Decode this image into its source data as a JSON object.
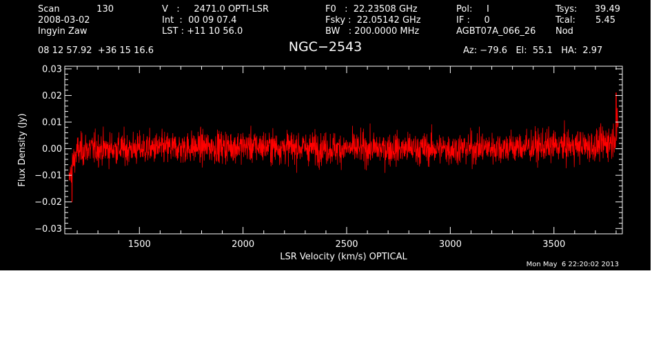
{
  "header": {
    "col1": {
      "scan_label": "Scan",
      "scan_value": "130",
      "date": "2008-03-02",
      "observer": "Ingyin Zaw"
    },
    "col2": {
      "v_line": "V   :     2471.0 OPTI-LSR",
      "int_line": "Int  :  00 09 07.4",
      "lst_line": "LST : +11 10 56.0"
    },
    "col3": {
      "f0_line": "F0   :  22.23508 GHz",
      "fsky_line": "Fsky :  22.05142 GHz",
      "bw_line": "BW   : 200.0000 MHz"
    },
    "col4": {
      "pol_line": "Pol:     I",
      "if_line": "IF :     0",
      "project": "AGBT07A_066_26"
    },
    "col5": {
      "tsys_label": "Tsys:",
      "tsys_value": "39.49",
      "tcal_label": "Tcal:",
      "tcal_value": "5.45",
      "mode": "Nod"
    },
    "coords": "08 12 57.92  +36 15 16.6",
    "source": "NGC−2543",
    "pointing": "Az: −79.6   El:  55.1   HA:  2.97"
  },
  "timestamp": "Mon May  6 22:20:02 2013",
  "colors": {
    "background": "#000000",
    "axes": "#ffffff",
    "spectrum": "#ff0000"
  },
  "chart_data": {
    "type": "line",
    "title": "NGC−2543",
    "xlabel": "LSR Velocity (km/s) OPTICAL",
    "ylabel": "Flux Density (Jy)",
    "xlim": [
      1140,
      3830
    ],
    "ylim": [
      -0.032,
      0.031
    ],
    "xticks": [
      1500,
      2000,
      2500,
      3000,
      3500
    ],
    "xtick_labels": [
      "1500",
      "2000",
      "2500",
      "3000",
      "3500"
    ],
    "yticks": [
      -0.03,
      -0.02,
      -0.01,
      0.0,
      0.01,
      0.02,
      0.03
    ],
    "ytick_labels": [
      "−0.03",
      "−0.02",
      "−0.01",
      "0.00",
      "0.01",
      "0.02",
      "0.03"
    ],
    "grid": false,
    "series": [
      {
        "color": "#ff0000",
        "x_range": [
          1160,
          3810
        ],
        "profile_x": [
          1160,
          1175,
          1200,
          1250,
          1500,
          2000,
          2500,
          3000,
          3500,
          3700,
          3780,
          3810
        ],
        "profile_center": [
          -0.012,
          -0.006,
          -0.001,
          0.0,
          0.0,
          0.001,
          0.0,
          0.0,
          0.001,
          0.001,
          0.003,
          0.008
        ],
        "profile_noise": [
          0.004,
          0.0045,
          0.005,
          0.005,
          0.005,
          0.005,
          0.005,
          0.005,
          0.005,
          0.005,
          0.0055,
          0.006
        ],
        "extremes": {
          "max": [
            3800,
            0.021
          ],
          "min": [
            1175,
            -0.02
          ]
        }
      }
    ]
  }
}
